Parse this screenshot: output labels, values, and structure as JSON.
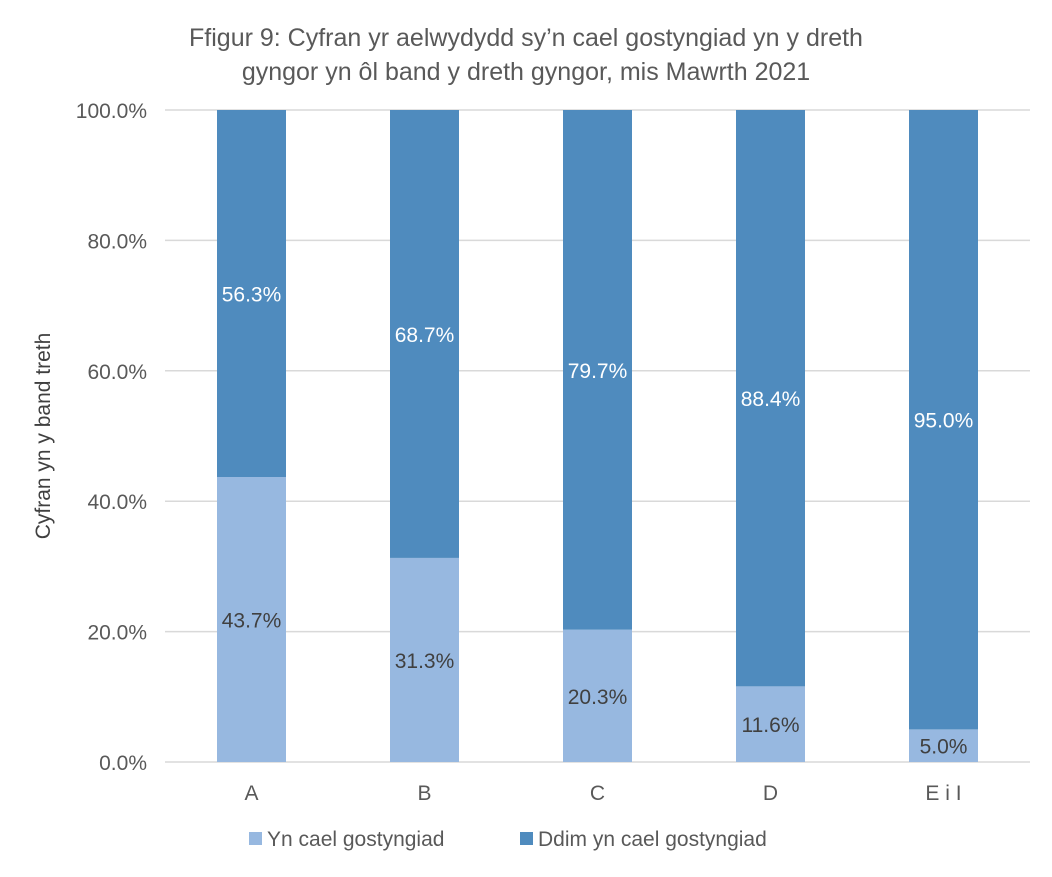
{
  "chart_data": {
    "type": "bar",
    "stacked": true,
    "title_lines": [
      "Ffigur 9: Cyfran yr aelwydydd sy’n cael gostyngiad yn y dreth",
      "gyngor yn ôl band y dreth gyngor, mis Mawrth 2021"
    ],
    "xlabel": "",
    "ylabel": "Cyfran yn y band treth",
    "ylim": [
      0,
      100
    ],
    "yticks": [
      0,
      20,
      40,
      60,
      80,
      100
    ],
    "ytick_labels": [
      "0.0%",
      "20.0%",
      "40.0%",
      "60.0%",
      "80.0%",
      "100.0%"
    ],
    "grid": true,
    "legend_position": "bottom",
    "categories": [
      "A",
      "B",
      "C",
      "D",
      "E i I"
    ],
    "series": [
      {
        "name": "Yn cael gostyngiad",
        "color": "#97b8e0",
        "label_color": "#404040",
        "values": [
          43.7,
          31.3,
          20.3,
          11.6,
          5.0
        ],
        "labels": [
          "43.7%",
          "31.3%",
          "20.3%",
          "11.6%",
          "5.0%"
        ]
      },
      {
        "name": "Ddim yn cael gostyngiad",
        "color": "#4f8bbe",
        "label_color": "#ffffff",
        "values": [
          56.3,
          68.7,
          79.7,
          88.4,
          95.0
        ],
        "labels": [
          "56.3%",
          "68.7%",
          "79.7%",
          "88.4%",
          "95.0%"
        ]
      }
    ]
  }
}
